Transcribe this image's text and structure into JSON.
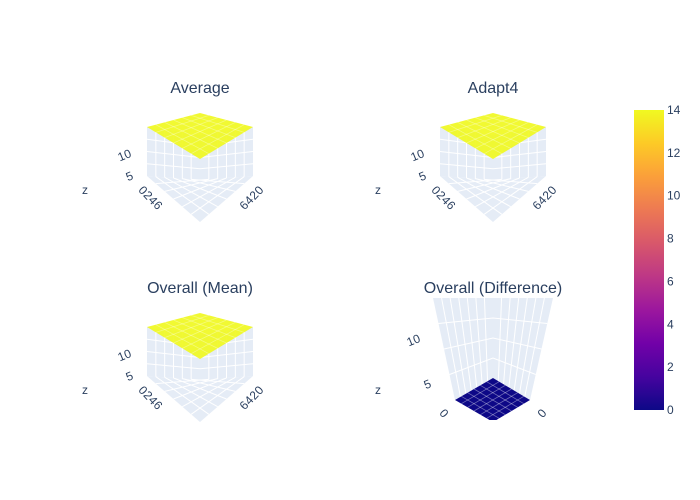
{
  "chart_data": [
    {
      "type": "surface",
      "title": "Average",
      "zlabel": "z",
      "z_ticks": [
        "5",
        "10"
      ],
      "x_ticks": [
        "0",
        "2",
        "4",
        "6"
      ],
      "y_ticks": [
        "0",
        "2",
        "4",
        "6"
      ],
      "z_value": 14
    },
    {
      "type": "surface",
      "title": "Adapt4",
      "zlabel": "z",
      "z_ticks": [
        "5",
        "10"
      ],
      "x_ticks": [
        "0",
        "2",
        "4",
        "6"
      ],
      "y_ticks": [
        "0",
        "2",
        "4",
        "6"
      ],
      "z_value": 14
    },
    {
      "type": "surface",
      "title": "Overall (Mean)",
      "zlabel": "z",
      "z_ticks": [
        "5",
        "10"
      ],
      "x_ticks": [
        "0",
        "2",
        "4",
        "6"
      ],
      "y_ticks": [
        "0",
        "2",
        "4",
        "6"
      ],
      "z_value": 14
    },
    {
      "type": "surface",
      "title": "Overall (Difference)",
      "zlabel": "z",
      "z_ticks": [
        "5",
        "10"
      ],
      "x_ticks": [
        "0"
      ],
      "y_ticks": [
        "0"
      ],
      "z_value": 0
    }
  ],
  "colorbar": {
    "ticks": [
      "0",
      "2",
      "4",
      "6",
      "8",
      "10",
      "12",
      "14"
    ],
    "range": [
      0,
      14
    ],
    "colors": [
      "#0d0887",
      "#46039f",
      "#7201a8",
      "#9c179e",
      "#bd3786",
      "#d8576b",
      "#ed7953",
      "#fb9f3a",
      "#fdca26",
      "#f0f921"
    ]
  },
  "colors": {
    "scene_background": "#e5ecf6",
    "grid": "#ffffff",
    "text": "#2a3f5f"
  }
}
